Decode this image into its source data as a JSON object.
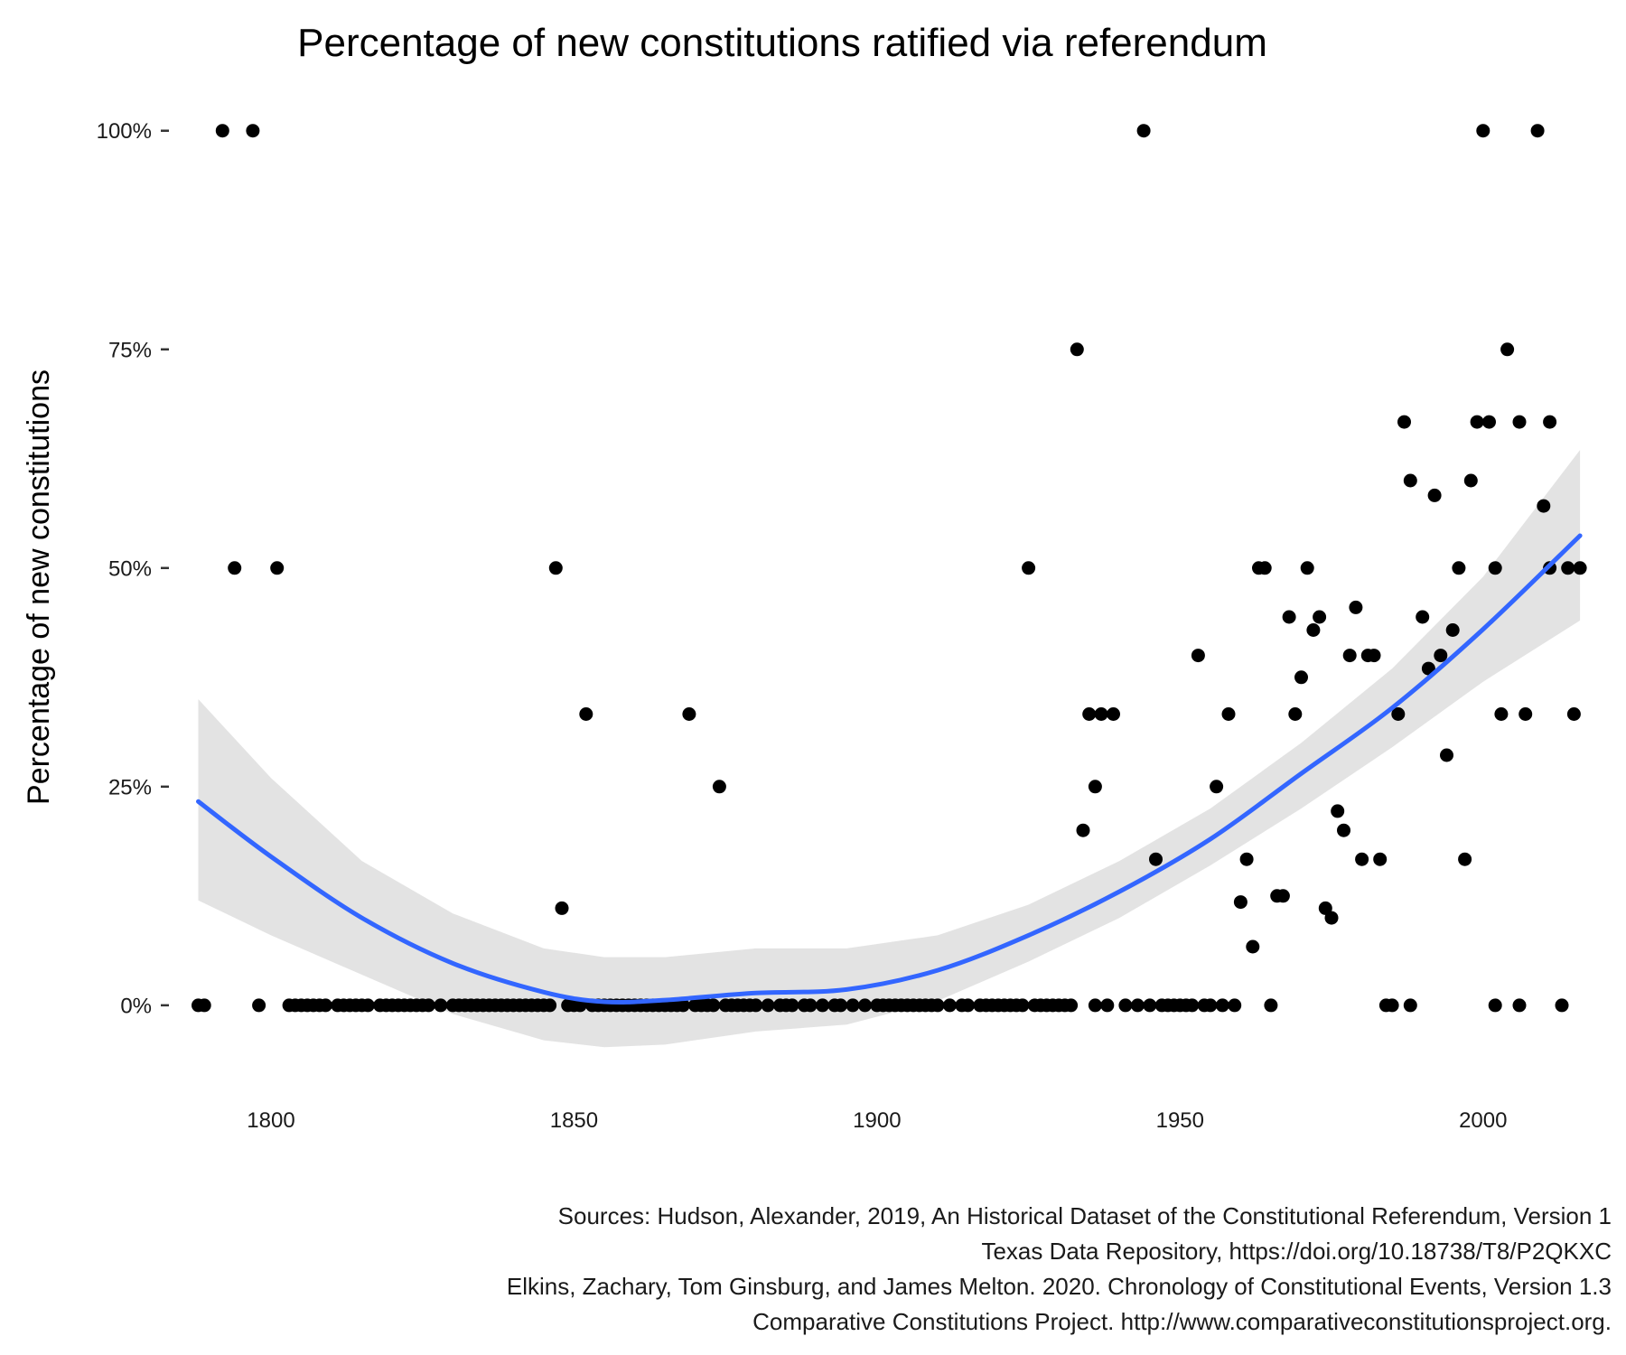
{
  "chart_data": {
    "type": "scatter",
    "title": "Percentage of new constitutions ratified via referendum",
    "xlabel": "",
    "ylabel": "Percentage of new constitutions",
    "x_ticks": [
      "1800",
      "1850",
      "1900",
      "1950",
      "2000"
    ],
    "y_ticks": [
      "0%",
      "25%",
      "50%",
      "75%",
      "100%"
    ],
    "xlim": [
      1784.5,
      2021.5
    ],
    "ylim": [
      -0.09,
      1.04
    ],
    "grid": false,
    "legend": "none",
    "colors": {
      "points": "#000000",
      "smooth_line": "#3366ff",
      "ribbon": "#d9d9d9"
    },
    "points": [
      {
        "x": 1792,
        "y": 1.0
      },
      {
        "x": 1797,
        "y": 1.0
      },
      {
        "x": 1944,
        "y": 1.0
      },
      {
        "x": 2000,
        "y": 1.0
      },
      {
        "x": 2009,
        "y": 1.0
      },
      {
        "x": 1933,
        "y": 0.75
      },
      {
        "x": 2004,
        "y": 0.75
      },
      {
        "x": 1987,
        "y": 0.667
      },
      {
        "x": 1999,
        "y": 0.667
      },
      {
        "x": 2001,
        "y": 0.667
      },
      {
        "x": 2006,
        "y": 0.667
      },
      {
        "x": 2011,
        "y": 0.667
      },
      {
        "x": 1988,
        "y": 0.6
      },
      {
        "x": 1998,
        "y": 0.6
      },
      {
        "x": 1992,
        "y": 0.583
      },
      {
        "x": 2010,
        "y": 0.571
      },
      {
        "x": 1794,
        "y": 0.5
      },
      {
        "x": 1801,
        "y": 0.5
      },
      {
        "x": 1847,
        "y": 0.5
      },
      {
        "x": 1925,
        "y": 0.5
      },
      {
        "x": 1963,
        "y": 0.5
      },
      {
        "x": 1964,
        "y": 0.5
      },
      {
        "x": 1971,
        "y": 0.5
      },
      {
        "x": 1996,
        "y": 0.5
      },
      {
        "x": 2002,
        "y": 0.5
      },
      {
        "x": 2011,
        "y": 0.5
      },
      {
        "x": 2014,
        "y": 0.5
      },
      {
        "x": 2016,
        "y": 0.5
      },
      {
        "x": 1979,
        "y": 0.455
      },
      {
        "x": 1968,
        "y": 0.444
      },
      {
        "x": 1973,
        "y": 0.444
      },
      {
        "x": 1990,
        "y": 0.444
      },
      {
        "x": 1972,
        "y": 0.429
      },
      {
        "x": 1995,
        "y": 0.429
      },
      {
        "x": 1953,
        "y": 0.4
      },
      {
        "x": 1978,
        "y": 0.4
      },
      {
        "x": 1981,
        "y": 0.4
      },
      {
        "x": 1982,
        "y": 0.4
      },
      {
        "x": 1993,
        "y": 0.4
      },
      {
        "x": 1991,
        "y": 0.385
      },
      {
        "x": 1970,
        "y": 0.375
      },
      {
        "x": 1852,
        "y": 0.333
      },
      {
        "x": 1869,
        "y": 0.333
      },
      {
        "x": 1935,
        "y": 0.333
      },
      {
        "x": 1937,
        "y": 0.333
      },
      {
        "x": 1939,
        "y": 0.333
      },
      {
        "x": 1958,
        "y": 0.333
      },
      {
        "x": 1969,
        "y": 0.333
      },
      {
        "x": 1986,
        "y": 0.333
      },
      {
        "x": 2003,
        "y": 0.333
      },
      {
        "x": 2007,
        "y": 0.333
      },
      {
        "x": 2015,
        "y": 0.333
      },
      {
        "x": 1994,
        "y": 0.286
      },
      {
        "x": 1874,
        "y": 0.25
      },
      {
        "x": 1936,
        "y": 0.25
      },
      {
        "x": 1956,
        "y": 0.25
      },
      {
        "x": 1976,
        "y": 0.222
      },
      {
        "x": 1934,
        "y": 0.2
      },
      {
        "x": 1977,
        "y": 0.2
      },
      {
        "x": 1946,
        "y": 0.167
      },
      {
        "x": 1961,
        "y": 0.167
      },
      {
        "x": 1980,
        "y": 0.167
      },
      {
        "x": 1983,
        "y": 0.167
      },
      {
        "x": 1997,
        "y": 0.167
      },
      {
        "x": 1966,
        "y": 0.125
      },
      {
        "x": 1967,
        "y": 0.125
      },
      {
        "x": 1960,
        "y": 0.118
      },
      {
        "x": 1848,
        "y": 0.111
      },
      {
        "x": 1974,
        "y": 0.111
      },
      {
        "x": 1975,
        "y": 0.1
      },
      {
        "x": 1962,
        "y": 0.067
      },
      {
        "x": 1788,
        "y": 0
      },
      {
        "x": 1789,
        "y": 0
      },
      {
        "x": 1798,
        "y": 0
      },
      {
        "x": 1803,
        "y": 0
      },
      {
        "x": 1804,
        "y": 0
      },
      {
        "x": 1805,
        "y": 0
      },
      {
        "x": 1806,
        "y": 0
      },
      {
        "x": 1807,
        "y": 0
      },
      {
        "x": 1808,
        "y": 0
      },
      {
        "x": 1809,
        "y": 0
      },
      {
        "x": 1811,
        "y": 0
      },
      {
        "x": 1812,
        "y": 0
      },
      {
        "x": 1813,
        "y": 0
      },
      {
        "x": 1814,
        "y": 0
      },
      {
        "x": 1815,
        "y": 0
      },
      {
        "x": 1816,
        "y": 0
      },
      {
        "x": 1818,
        "y": 0
      },
      {
        "x": 1819,
        "y": 0
      },
      {
        "x": 1820,
        "y": 0
      },
      {
        "x": 1821,
        "y": 0
      },
      {
        "x": 1822,
        "y": 0
      },
      {
        "x": 1823,
        "y": 0
      },
      {
        "x": 1824,
        "y": 0
      },
      {
        "x": 1825,
        "y": 0
      },
      {
        "x": 1826,
        "y": 0
      },
      {
        "x": 1828,
        "y": 0
      },
      {
        "x": 1830,
        "y": 0
      },
      {
        "x": 1831,
        "y": 0
      },
      {
        "x": 1832,
        "y": 0
      },
      {
        "x": 1833,
        "y": 0
      },
      {
        "x": 1834,
        "y": 0
      },
      {
        "x": 1835,
        "y": 0
      },
      {
        "x": 1836,
        "y": 0
      },
      {
        "x": 1837,
        "y": 0
      },
      {
        "x": 1838,
        "y": 0
      },
      {
        "x": 1839,
        "y": 0
      },
      {
        "x": 1840,
        "y": 0
      },
      {
        "x": 1841,
        "y": 0
      },
      {
        "x": 1842,
        "y": 0
      },
      {
        "x": 1843,
        "y": 0
      },
      {
        "x": 1844,
        "y": 0
      },
      {
        "x": 1845,
        "y": 0
      },
      {
        "x": 1846,
        "y": 0
      },
      {
        "x": 1849,
        "y": 0
      },
      {
        "x": 1850,
        "y": 0
      },
      {
        "x": 1851,
        "y": 0
      },
      {
        "x": 1853,
        "y": 0
      },
      {
        "x": 1854,
        "y": 0
      },
      {
        "x": 1855,
        "y": 0
      },
      {
        "x": 1856,
        "y": 0
      },
      {
        "x": 1857,
        "y": 0
      },
      {
        "x": 1858,
        "y": 0
      },
      {
        "x": 1859,
        "y": 0
      },
      {
        "x": 1860,
        "y": 0
      },
      {
        "x": 1861,
        "y": 0
      },
      {
        "x": 1862,
        "y": 0
      },
      {
        "x": 1863,
        "y": 0
      },
      {
        "x": 1864,
        "y": 0
      },
      {
        "x": 1865,
        "y": 0
      },
      {
        "x": 1866,
        "y": 0
      },
      {
        "x": 1867,
        "y": 0
      },
      {
        "x": 1868,
        "y": 0
      },
      {
        "x": 1870,
        "y": 0
      },
      {
        "x": 1871,
        "y": 0
      },
      {
        "x": 1872,
        "y": 0
      },
      {
        "x": 1873,
        "y": 0
      },
      {
        "x": 1875,
        "y": 0
      },
      {
        "x": 1876,
        "y": 0
      },
      {
        "x": 1877,
        "y": 0
      },
      {
        "x": 1878,
        "y": 0
      },
      {
        "x": 1879,
        "y": 0
      },
      {
        "x": 1880,
        "y": 0
      },
      {
        "x": 1882,
        "y": 0
      },
      {
        "x": 1884,
        "y": 0
      },
      {
        "x": 1885,
        "y": 0
      },
      {
        "x": 1886,
        "y": 0
      },
      {
        "x": 1888,
        "y": 0
      },
      {
        "x": 1889,
        "y": 0
      },
      {
        "x": 1891,
        "y": 0
      },
      {
        "x": 1893,
        "y": 0
      },
      {
        "x": 1894,
        "y": 0
      },
      {
        "x": 1896,
        "y": 0
      },
      {
        "x": 1898,
        "y": 0
      },
      {
        "x": 1900,
        "y": 0
      },
      {
        "x": 1901,
        "y": 0
      },
      {
        "x": 1902,
        "y": 0
      },
      {
        "x": 1903,
        "y": 0
      },
      {
        "x": 1904,
        "y": 0
      },
      {
        "x": 1905,
        "y": 0
      },
      {
        "x": 1906,
        "y": 0
      },
      {
        "x": 1907,
        "y": 0
      },
      {
        "x": 1908,
        "y": 0
      },
      {
        "x": 1909,
        "y": 0
      },
      {
        "x": 1910,
        "y": 0
      },
      {
        "x": 1912,
        "y": 0
      },
      {
        "x": 1914,
        "y": 0
      },
      {
        "x": 1915,
        "y": 0
      },
      {
        "x": 1917,
        "y": 0
      },
      {
        "x": 1918,
        "y": 0
      },
      {
        "x": 1919,
        "y": 0
      },
      {
        "x": 1920,
        "y": 0
      },
      {
        "x": 1921,
        "y": 0
      },
      {
        "x": 1922,
        "y": 0
      },
      {
        "x": 1923,
        "y": 0
      },
      {
        "x": 1924,
        "y": 0
      },
      {
        "x": 1926,
        "y": 0
      },
      {
        "x": 1927,
        "y": 0
      },
      {
        "x": 1928,
        "y": 0
      },
      {
        "x": 1929,
        "y": 0
      },
      {
        "x": 1930,
        "y": 0
      },
      {
        "x": 1931,
        "y": 0
      },
      {
        "x": 1932,
        "y": 0
      },
      {
        "x": 1936,
        "y": 0
      },
      {
        "x": 1938,
        "y": 0
      },
      {
        "x": 1941,
        "y": 0
      },
      {
        "x": 1943,
        "y": 0
      },
      {
        "x": 1945,
        "y": 0
      },
      {
        "x": 1947,
        "y": 0
      },
      {
        "x": 1948,
        "y": 0
      },
      {
        "x": 1949,
        "y": 0
      },
      {
        "x": 1950,
        "y": 0
      },
      {
        "x": 1951,
        "y": 0
      },
      {
        "x": 1952,
        "y": 0
      },
      {
        "x": 1954,
        "y": 0
      },
      {
        "x": 1955,
        "y": 0
      },
      {
        "x": 1957,
        "y": 0
      },
      {
        "x": 1959,
        "y": 0
      },
      {
        "x": 1965,
        "y": 0
      },
      {
        "x": 1984,
        "y": 0
      },
      {
        "x": 1985,
        "y": 0
      },
      {
        "x": 1988,
        "y": 0
      },
      {
        "x": 2002,
        "y": 0
      },
      {
        "x": 2006,
        "y": 0
      },
      {
        "x": 2013,
        "y": 0
      }
    ],
    "smooth": [
      {
        "x": 1788,
        "y": 0.233,
        "lo": 0.12,
        "hi": 0.35
      },
      {
        "x": 1800,
        "y": 0.17,
        "lo": 0.08,
        "hi": 0.26
      },
      {
        "x": 1815,
        "y": 0.1,
        "lo": 0.035,
        "hi": 0.165
      },
      {
        "x": 1830,
        "y": 0.048,
        "lo": -0.01,
        "hi": 0.105
      },
      {
        "x": 1845,
        "y": 0.015,
        "lo": -0.04,
        "hi": 0.065
      },
      {
        "x": 1855,
        "y": 0.004,
        "lo": -0.048,
        "hi": 0.055
      },
      {
        "x": 1865,
        "y": 0.006,
        "lo": -0.045,
        "hi": 0.055
      },
      {
        "x": 1880,
        "y": 0.014,
        "lo": -0.03,
        "hi": 0.065
      },
      {
        "x": 1895,
        "y": 0.018,
        "lo": -0.022,
        "hi": 0.065
      },
      {
        "x": 1910,
        "y": 0.04,
        "lo": 0.005,
        "hi": 0.08
      },
      {
        "x": 1925,
        "y": 0.08,
        "lo": 0.05,
        "hi": 0.115
      },
      {
        "x": 1940,
        "y": 0.13,
        "lo": 0.1,
        "hi": 0.165
      },
      {
        "x": 1955,
        "y": 0.19,
        "lo": 0.16,
        "hi": 0.225
      },
      {
        "x": 1970,
        "y": 0.265,
        "lo": 0.225,
        "hi": 0.3
      },
      {
        "x": 1985,
        "y": 0.34,
        "lo": 0.295,
        "hi": 0.385
      },
      {
        "x": 2000,
        "y": 0.43,
        "lo": 0.37,
        "hi": 0.49
      },
      {
        "x": 2016,
        "y": 0.537,
        "lo": 0.44,
        "hi": 0.635
      }
    ],
    "caption": [
      "Sources: Hudson, Alexander, 2019, An Historical Dataset of the Constitutional Referendum, Version 1",
      "Texas Data Repository, https://doi.org/10.18738/T8/P2QKXC",
      "Elkins, Zachary, Tom Ginsburg, and James Melton. 2020. Chronology of Constitutional Events, Version 1.3",
      "Comparative Constitutions Project. http://www.comparativeconstitutionsproject.org."
    ]
  }
}
